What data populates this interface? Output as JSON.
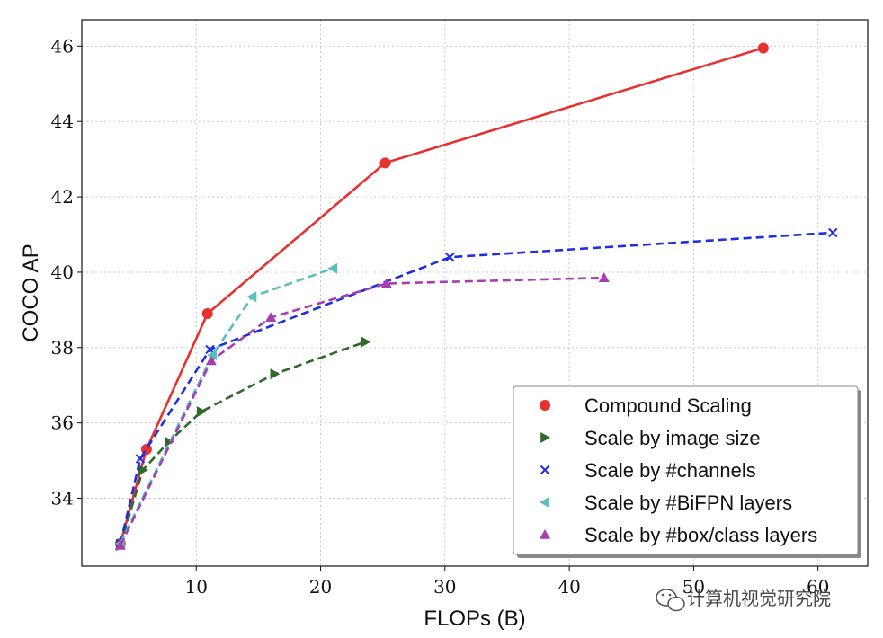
{
  "chart_data": {
    "type": "line",
    "title": "",
    "xlabel": "FLOPs (B)",
    "ylabel": "COCO AP",
    "xlim": [
      0.8,
      64
    ],
    "ylim": [
      32.2,
      46.7
    ],
    "xticks": [
      10,
      20,
      30,
      40,
      50,
      60
    ],
    "yticks": [
      34,
      36,
      38,
      40,
      42,
      44,
      46
    ],
    "grid": true,
    "legend_position": "lower-right",
    "series": [
      {
        "name": "Compound Scaling",
        "color": "#e8312f",
        "linestyle": "solid",
        "marker": "circle",
        "points": [
          [
            3.9,
            32.8
          ],
          [
            6.0,
            35.3
          ],
          [
            10.9,
            38.9
          ],
          [
            25.2,
            42.9
          ],
          [
            55.6,
            45.95
          ]
        ]
      },
      {
        "name": "Scale by image size",
        "color": "#2f6a2a",
        "linestyle": "dashed",
        "marker": "triangle-right",
        "points": [
          [
            3.9,
            32.75
          ],
          [
            5.7,
            34.75
          ],
          [
            7.8,
            35.5
          ],
          [
            10.4,
            36.3
          ],
          [
            16.3,
            37.3
          ],
          [
            23.6,
            38.15
          ]
        ]
      },
      {
        "name": "Scale by #channels",
        "color": "#1f2fe0",
        "linestyle": "dashed",
        "marker": "x",
        "points": [
          [
            3.9,
            32.8
          ],
          [
            5.5,
            35.05
          ],
          [
            11.1,
            37.95
          ],
          [
            30.4,
            40.4
          ],
          [
            61.2,
            41.05
          ]
        ]
      },
      {
        "name": "Scale by #BiFPN layers",
        "color": "#57bfbf",
        "linestyle": "dashed",
        "marker": "triangle-left",
        "points": [
          [
            3.9,
            32.8
          ],
          [
            11.3,
            37.8
          ],
          [
            14.5,
            39.35
          ],
          [
            21.0,
            40.1
          ]
        ]
      },
      {
        "name": "Scale by #box/class layers",
        "color": "#a63db0",
        "linestyle": "dashed",
        "marker": "triangle-up",
        "points": [
          [
            3.9,
            32.75
          ],
          [
            11.2,
            37.65
          ],
          [
            16.0,
            38.8
          ],
          [
            25.3,
            39.7
          ],
          [
            42.8,
            39.85
          ]
        ]
      }
    ]
  },
  "watermark": "计算机视觉研究院"
}
